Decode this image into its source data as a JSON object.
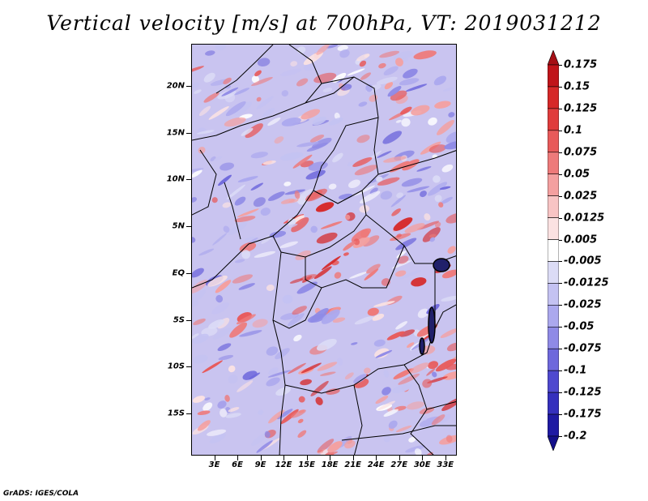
{
  "title": "Vertical velocity [m/s] at 700hPa, VT: 2019031212",
  "footer": "GrADS: IGES/COLA",
  "map": {
    "lat_labels": [
      "20N",
      "15N",
      "10N",
      "5N",
      "EQ",
      "5S",
      "10S",
      "15S"
    ],
    "lat_values": [
      20,
      15,
      10,
      5,
      0,
      -5,
      -10,
      -15
    ],
    "lon_labels": [
      "3E",
      "6E",
      "9E",
      "12E",
      "15E",
      "18E",
      "21E",
      "24E",
      "27E",
      "30E",
      "33E"
    ],
    "lon_values": [
      3,
      6,
      9,
      12,
      15,
      18,
      21,
      24,
      27,
      30,
      33
    ],
    "extent": {
      "lon_min": 0,
      "lon_max": 34.5,
      "lat_min": -19.5,
      "lat_max": 24.5
    }
  },
  "legend": {
    "labels": [
      "0.175",
      "0.15",
      "0.125",
      "0.1",
      "0.075",
      "0.05",
      "0.025",
      "0.0125",
      "0.005",
      "-0.005",
      "-0.0125",
      "-0.025",
      "-0.05",
      "-0.075",
      "-0.1",
      "-0.125",
      "-0.175",
      "-0.2"
    ],
    "colors": [
      "#a50f15",
      "#c0141a",
      "#d62828",
      "#e03c3c",
      "#e85a5a",
      "#ee7a7a",
      "#f4a0a0",
      "#f8c4c4",
      "#fbe2e2",
      "#ffffff",
      "#dcdcf6",
      "#c4c2f2",
      "#aba8ee",
      "#8f8ae6",
      "#6e68dc",
      "#4f49cf",
      "#3530bd",
      "#1f1aa3",
      "#14108a"
    ]
  },
  "colors": {
    "background_blue": "#c9c4f0",
    "strong_red": "#d62828",
    "strong_blue": "#2420a8",
    "boundary": "#000000"
  }
}
